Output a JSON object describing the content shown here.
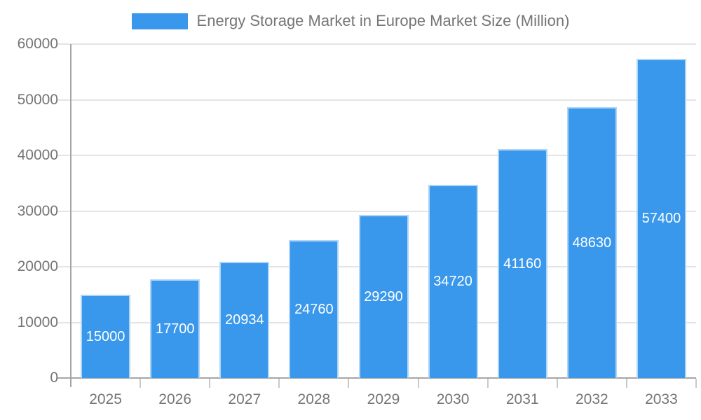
{
  "chart_data": {
    "type": "bar",
    "legend": "Energy Storage Market in Europe Market Size (Million)",
    "legend_position": "top",
    "categories": [
      "2025",
      "2026",
      "2027",
      "2028",
      "2029",
      "2030",
      "2031",
      "2032",
      "2033"
    ],
    "values": [
      15000,
      17700,
      20934,
      24760,
      29290,
      34720,
      41160,
      48630,
      57400
    ],
    "xlabel": "",
    "ylabel": "",
    "ylim": [
      0,
      60000
    ],
    "yticks": [
      0,
      10000,
      20000,
      30000,
      40000,
      50000,
      60000
    ],
    "grid": true,
    "data_labels": "inside-center-white",
    "colors": {
      "bar": "#3998ec",
      "bar_border": "#b0d6f7",
      "grid": "#e4e4e4",
      "axis": "#a6a6a6",
      "tick": "#c9c9c9",
      "text": "#757575",
      "bar_label_text": "#ffffff"
    }
  }
}
